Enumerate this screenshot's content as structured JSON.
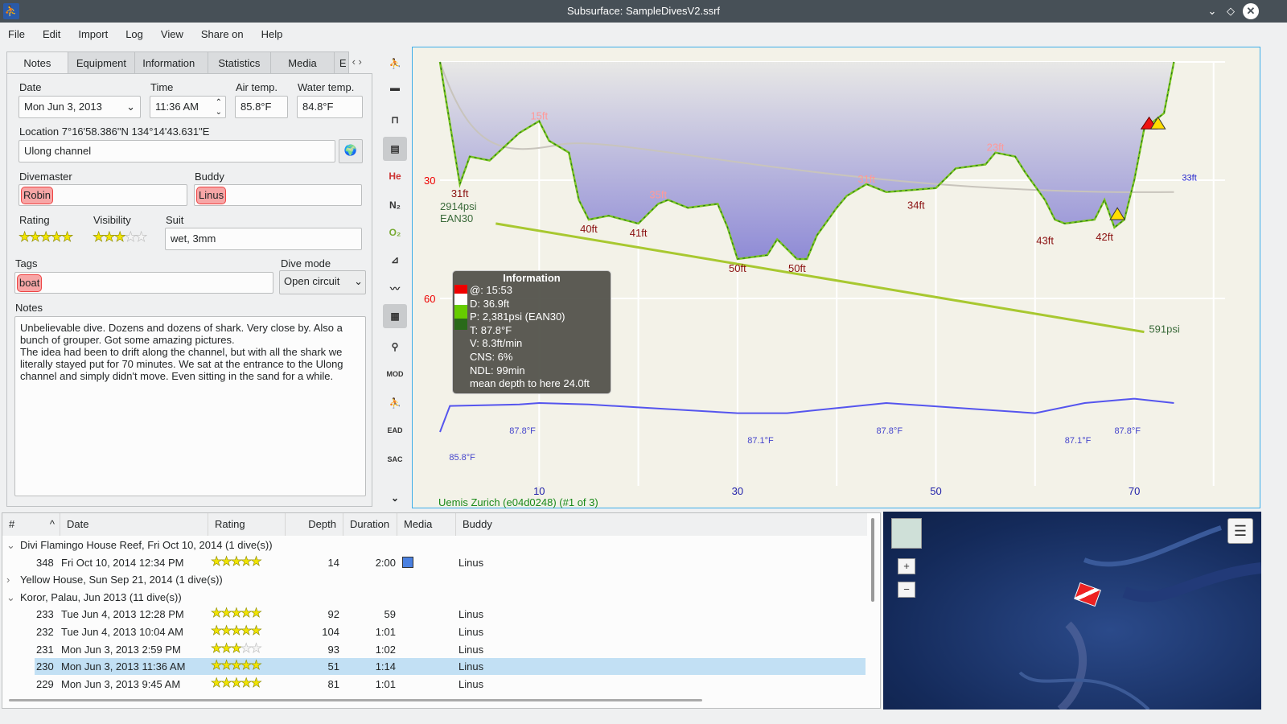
{
  "window": {
    "title": "Subsurface: SampleDivesV2.ssrf"
  },
  "menu": [
    "File",
    "Edit",
    "Import",
    "Log",
    "View",
    "Share on",
    "Help"
  ],
  "tabs": [
    "Notes",
    "Equipment",
    "Information",
    "Statistics",
    "Media",
    "E"
  ],
  "notes": {
    "date_label": "Date",
    "date": "Mon Jun 3, 2013",
    "time_label": "Time",
    "time": "11:36 AM",
    "air_label": "Air temp.",
    "air": "85.8°F",
    "water_label": "Water temp.",
    "water": "84.8°F",
    "location_label": "Location 7°16'58.386\"N 134°14'43.631\"E",
    "location": "Ulong channel",
    "divemaster_label": "Divemaster",
    "divemaster": "Robin",
    "buddy_label": "Buddy",
    "buddy": "Linus",
    "rating_label": "Rating",
    "rating": 5,
    "visibility_label": "Visibility",
    "visibility": 3,
    "suit_label": "Suit",
    "suit": "wet, 3mm",
    "tags_label": "Tags",
    "tags": "boat",
    "divemode_label": "Dive mode",
    "divemode": "Open circuit",
    "notes_label": "Notes",
    "notes_text": "Unbelievable dive. Dozens and dozens of shark. Very close by. Also a bunch of grouper. Got some amazing pictures.\nThe idea had been to drift along the channel, but with all the shark we literally stayed put for 70 minutes. We sat at the entrance to the Ulong channel and simply didn't move. Even sitting in the sand for a while."
  },
  "toolbar": [
    "profile-icon",
    "ceiling-icon",
    "calc-ceiling-icon",
    "tissue-icon",
    "He",
    "N2",
    "O2",
    "max-depth-icon",
    "graph-icon",
    "map-icon",
    "heartrate-icon",
    "MOD",
    "deco-icon",
    "EAD",
    "SAC"
  ],
  "chart_data": {
    "type": "line",
    "xlabel": "",
    "ylabel": "",
    "x_ticks": [
      10,
      30,
      50,
      70
    ],
    "y_ticks": [
      30,
      60
    ],
    "xlim": [
      0,
      80
    ],
    "ylim_ft": [
      0,
      107
    ],
    "depth": {
      "t": [
        0,
        0.5,
        2,
        3,
        5,
        8,
        10,
        11,
        13,
        14,
        15,
        17,
        20,
        22,
        23,
        25,
        28,
        29,
        30,
        33,
        34,
        36,
        37,
        38,
        40,
        41,
        43,
        45,
        50,
        52,
        55,
        56,
        58,
        59,
        61,
        62,
        63,
        66,
        67,
        68,
        69,
        70,
        71,
        72,
        73,
        74
      ],
      "ft": [
        0,
        8,
        31,
        24,
        25,
        18,
        15,
        20,
        23,
        35,
        40,
        39,
        41,
        36,
        35,
        37,
        36,
        42,
        50,
        49,
        45,
        50,
        50,
        44,
        37,
        34,
        31,
        33,
        32,
        27,
        26,
        23,
        24,
        28,
        35,
        40,
        41,
        40,
        35,
        42,
        40,
        30,
        17,
        15,
        13,
        0
      ]
    },
    "pressure": {
      "t": [
        4,
        71
      ],
      "psi": [
        2914,
        591
      ]
    },
    "temperature": {
      "t": [
        0,
        1,
        8,
        10,
        15,
        30,
        35,
        45,
        60,
        65,
        70,
        74
      ],
      "f": [
        85.8,
        87.6,
        87.7,
        87.8,
        87.7,
        87.1,
        87.1,
        87.8,
        87.1,
        87.8,
        88.1,
        87.8
      ]
    },
    "depth_labels": [
      {
        "t": 2,
        "ft": 31,
        "text": "31ft",
        "kind": "max"
      },
      {
        "t": 10,
        "ft": 15,
        "text": "15ft",
        "kind": "min"
      },
      {
        "t": 15,
        "ft": 40,
        "text": "40ft",
        "kind": "max"
      },
      {
        "t": 22,
        "ft": 35,
        "text": "35ft",
        "kind": "min"
      },
      {
        "t": 20,
        "ft": 41,
        "text": "41ft",
        "kind": "max"
      },
      {
        "t": 30,
        "ft": 50,
        "text": "50ft",
        "kind": "max"
      },
      {
        "t": 36,
        "ft": 50,
        "text": "50ft",
        "kind": "max"
      },
      {
        "t": 43,
        "ft": 31,
        "text": "31ft",
        "kind": "min"
      },
      {
        "t": 48,
        "ft": 34,
        "text": "34ft",
        "kind": "max"
      },
      {
        "t": 56,
        "ft": 23,
        "text": "23ft",
        "kind": "min"
      },
      {
        "t": 61,
        "ft": 43,
        "text": "43ft",
        "kind": "max"
      },
      {
        "t": 67,
        "ft": 42,
        "text": "42ft",
        "kind": "max"
      }
    ],
    "pressure_labels": [
      "2914psi",
      "591psi"
    ],
    "gas_label": "EAN30",
    "ceiling_label": "33ft",
    "temp_labels": [
      {
        "t": 7,
        "text": "87.8°F"
      },
      {
        "t": 1,
        "text": "85.8°F"
      },
      {
        "t": 31,
        "text": "87.1°F"
      },
      {
        "t": 44,
        "text": "87.8°F"
      },
      {
        "t": 63,
        "text": "87.1°F"
      },
      {
        "t": 68,
        "text": "87.8°F"
      }
    ],
    "computer": "Uemis Zurich (e04d0248) (#1 of 3)"
  },
  "info_box": {
    "title": "Information",
    "lines": [
      "@: 15:53",
      "D: 36.9ft",
      "P: 2,381psi (EAN30)",
      "T: 87.8°F",
      "V: 8.3ft/min",
      "CNS: 6%",
      "NDL: 99min",
      "mean depth to here 24.0ft"
    ]
  },
  "divelist": {
    "headers": [
      "#",
      "Date",
      "Rating",
      "Depth",
      "Duration",
      "Media",
      "Buddy"
    ],
    "rows": [
      {
        "trip": true,
        "expanded": true,
        "text": "Divi Flamingo House Reef, Fri Oct 10, 2014 (1 dive(s))"
      },
      {
        "num": "348",
        "date": "Fri Oct 10, 2014 12:34 PM",
        "rating": 5,
        "depth": "14",
        "duration": "2:00",
        "media": true,
        "buddy": "Linus"
      },
      {
        "trip": true,
        "expanded": false,
        "text": "Yellow House, Sun Sep 21, 2014 (1 dive(s))"
      },
      {
        "trip": true,
        "expanded": true,
        "text": "Koror, Palau, Jun 2013 (11 dive(s))"
      },
      {
        "num": "233",
        "date": "Tue Jun 4, 2013 12:28 PM",
        "rating": 5,
        "depth": "92",
        "duration": "59",
        "buddy": "Linus"
      },
      {
        "num": "232",
        "date": "Tue Jun 4, 2013 10:04 AM",
        "rating": 5,
        "depth": "104",
        "duration": "1:01",
        "buddy": "Linus"
      },
      {
        "num": "231",
        "date": "Mon Jun 3, 2013 2:59 PM",
        "rating": 3,
        "depth": "93",
        "duration": "1:02",
        "buddy": "Linus"
      },
      {
        "num": "230",
        "date": "Mon Jun 3, 2013 11:36 AM",
        "rating": 5,
        "depth": "51",
        "duration": "1:14",
        "buddy": "Linus",
        "selected": true
      },
      {
        "num": "229",
        "date": "Mon Jun 3, 2013 9:45 AM",
        "rating": 5,
        "depth": "81",
        "duration": "1:01",
        "buddy": "Linus"
      }
    ]
  },
  "map": {
    "zoom_in": "+",
    "zoom_out": "−"
  }
}
